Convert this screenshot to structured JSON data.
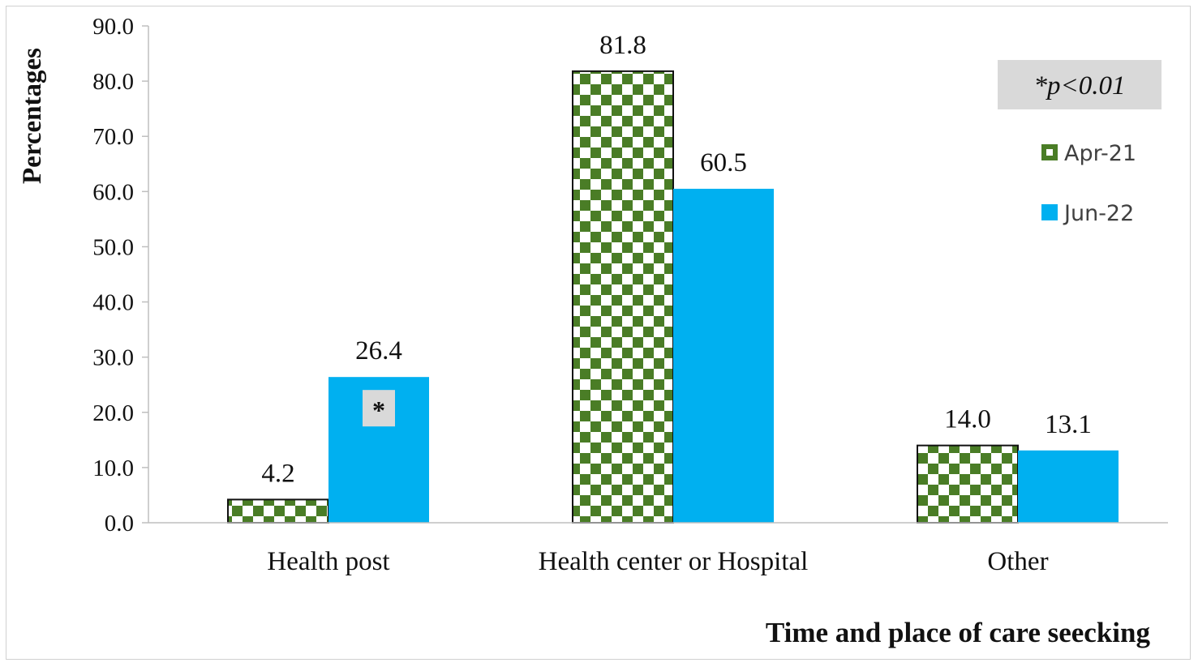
{
  "chart_data": {
    "type": "bar",
    "title": "",
    "xlabel": "Time and place of care seecking",
    "ylabel": "Percentages",
    "ylim": [
      0,
      90
    ],
    "yticks": [
      "0.0",
      "10.0",
      "20.0",
      "30.0",
      "40.0",
      "50.0",
      "60.0",
      "70.0",
      "80.0",
      "90.0"
    ],
    "categories": [
      "Health post",
      "Health center or Hospital",
      "Other"
    ],
    "series": [
      {
        "name": "Apr-21",
        "values": [
          4.2,
          81.8,
          14.0
        ],
        "labels": [
          "4.2",
          "81.8",
          "14.0"
        ],
        "color": "#4a7d26",
        "pattern": "checkerboard"
      },
      {
        "name": "Jun-22",
        "values": [
          26.4,
          60.5,
          13.1
        ],
        "labels": [
          "26.4",
          "60.5",
          "13.1"
        ],
        "color": "#00b0f0"
      }
    ],
    "annotations": {
      "significance_note": "*p<0.01",
      "marker": "*",
      "marker_category": "Health post",
      "marker_series": "Jun-22"
    },
    "grid": false,
    "legend_position": "right"
  }
}
